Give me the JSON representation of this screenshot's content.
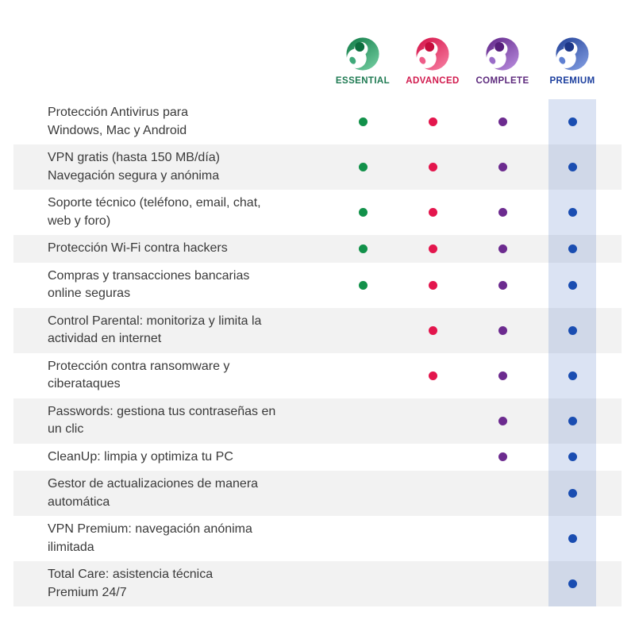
{
  "plans": [
    {
      "label": "ESSENTIAL",
      "label_color": "#1e7a52",
      "dot_color": "#12914a",
      "logo": {
        "dark": "#0f7a45",
        "light": "#6cc89b",
        "ear": "#0c6e3e",
        "leaf": "#3fa97a"
      }
    },
    {
      "label": "ADVANCED",
      "label_color": "#d11a4d",
      "dot_color": "#e3164d",
      "logo": {
        "dark": "#d40f45",
        "light": "#f4769b",
        "ear": "#c50c3d",
        "leaf": "#ee5c88"
      }
    },
    {
      "label": "COMPLETE",
      "label_color": "#5d2a7d",
      "dot_color": "#6c2b8f",
      "logo": {
        "dark": "#5f2487",
        "light": "#b285d8",
        "ear": "#571f7c",
        "leaf": "#9a6cc8"
      }
    },
    {
      "label": "PREMIUM",
      "label_color": "#1c3f9e",
      "dot_color": "#1a4db1",
      "logo": {
        "dark": "#203f96",
        "light": "#7b97dd",
        "ear": "#1d3788",
        "leaf": "#5f80d2"
      }
    }
  ],
  "chart_data": {
    "type": "table",
    "title": "",
    "columns": [
      "ESSENTIAL",
      "ADVANCED",
      "COMPLETE",
      "PREMIUM"
    ],
    "rows": [
      {
        "feature": "Protección Antivirus para Windows, Mac y Android",
        "lines": [
          "Protección Antivirus para",
          "Windows, Mac y Android"
        ],
        "included": [
          true,
          true,
          true,
          true
        ]
      },
      {
        "feature": "VPN gratis (hasta 150 MB/día) Navegación segura y anónima",
        "lines": [
          "VPN gratis (hasta 150 MB/día)",
          "Navegación segura y anónima"
        ],
        "included": [
          true,
          true,
          true,
          true
        ]
      },
      {
        "feature": "Soporte técnico (teléfono, email, chat, web y foro)",
        "lines": [
          "Soporte técnico (teléfono, email, chat,",
          "web y foro)"
        ],
        "included": [
          true,
          true,
          true,
          true
        ]
      },
      {
        "feature": "Protección Wi-Fi contra hackers",
        "lines": [
          "Protección Wi-Fi contra hackers"
        ],
        "included": [
          true,
          true,
          true,
          true
        ]
      },
      {
        "feature": "Compras y transacciones bancarias online seguras",
        "lines": [
          "Compras y transacciones bancarias",
          "online seguras"
        ],
        "included": [
          true,
          true,
          true,
          true
        ]
      },
      {
        "feature": "Control Parental: monitoriza y limita la actividad en internet",
        "lines": [
          "Control Parental: monitoriza y limita la",
          "actividad en internet"
        ],
        "included": [
          false,
          true,
          true,
          true
        ]
      },
      {
        "feature": "Protección contra ransomware y ciberataques",
        "lines": [
          "Protección contra ransomware y",
          "ciberataques"
        ],
        "included": [
          false,
          true,
          true,
          true
        ]
      },
      {
        "feature": "Passwords: gestiona tus contraseñas en un clic",
        "lines": [
          "Passwords: gestiona tus contraseñas en",
          "un clic"
        ],
        "included": [
          false,
          false,
          true,
          true
        ]
      },
      {
        "feature": "CleanUp: limpia y optimiza tu PC",
        "lines": [
          "CleanUp: limpia y optimiza tu PC"
        ],
        "included": [
          false,
          false,
          true,
          true
        ]
      },
      {
        "feature": "Gestor de actualizaciones de manera automática",
        "lines": [
          "Gestor de actualizaciones de manera",
          "automática"
        ],
        "included": [
          false,
          false,
          false,
          true
        ]
      },
      {
        "feature": "VPN Premium: navegación anónima ilimitada",
        "lines": [
          "VPN Premium: navegación anónima",
          "ilimitada"
        ],
        "included": [
          false,
          false,
          false,
          true
        ]
      },
      {
        "feature": "Total Care: asistencia técnica Premium 24/7",
        "lines": [
          "Total Care: asistencia técnica",
          "Premium 24/7"
        ],
        "included": [
          false,
          false,
          false,
          true
        ]
      }
    ]
  },
  "style": {
    "text_color": "#3a3a3a",
    "row_alt_bg": "#f2f2f2",
    "row_bg": "#ffffff",
    "premium_band_color": "rgba(27,79,176,0.155)"
  }
}
